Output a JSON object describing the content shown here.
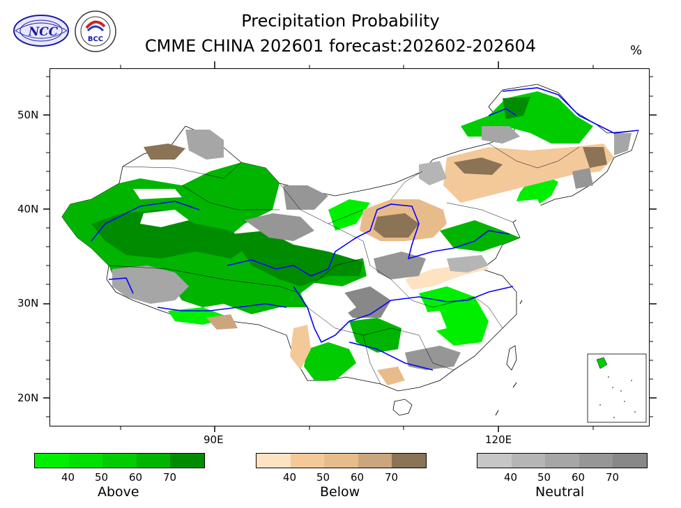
{
  "title": {
    "line1": "Precipitation Probability",
    "line2": "CMME CHINA 202601 forecast:202602-202604"
  },
  "unit": "%",
  "logos": {
    "ncc_text": "NCC",
    "ncc_top_text": "中 国 国 家 气 候 中 心",
    "bcc_text": "BCC",
    "bcc_ring_text": "BEIJING CLIMATE CENTER"
  },
  "axes": {
    "lat_labels": [
      "50N",
      "40N",
      "30N",
      "20N"
    ],
    "lon_labels": [
      "90E",
      "120E"
    ]
  },
  "legends": [
    {
      "name": "Above",
      "ticks": [
        "40",
        "50",
        "60",
        "70"
      ],
      "colors": [
        "#00ee00",
        "#00e000",
        "#00cc00",
        "#00b400",
        "#008c00"
      ]
    },
    {
      "name": "Below",
      "ticks": [
        "40",
        "50",
        "60",
        "70"
      ],
      "colors": [
        "#fde3c2",
        "#f3c99a",
        "#e8bc8a",
        "#caa57e",
        "#8b7355"
      ]
    },
    {
      "name": "Neutral",
      "ticks": [
        "40",
        "50",
        "60",
        "70"
      ],
      "colors": [
        "#c6c6c6",
        "#b5b5b5",
        "#a6a6a6",
        "#969696",
        "#888888"
      ]
    }
  ],
  "map": {
    "region": "China",
    "categories": [
      "Above",
      "Below",
      "Neutral"
    ],
    "rivers_color": "#0000ff",
    "boundary_color": "#000000"
  }
}
